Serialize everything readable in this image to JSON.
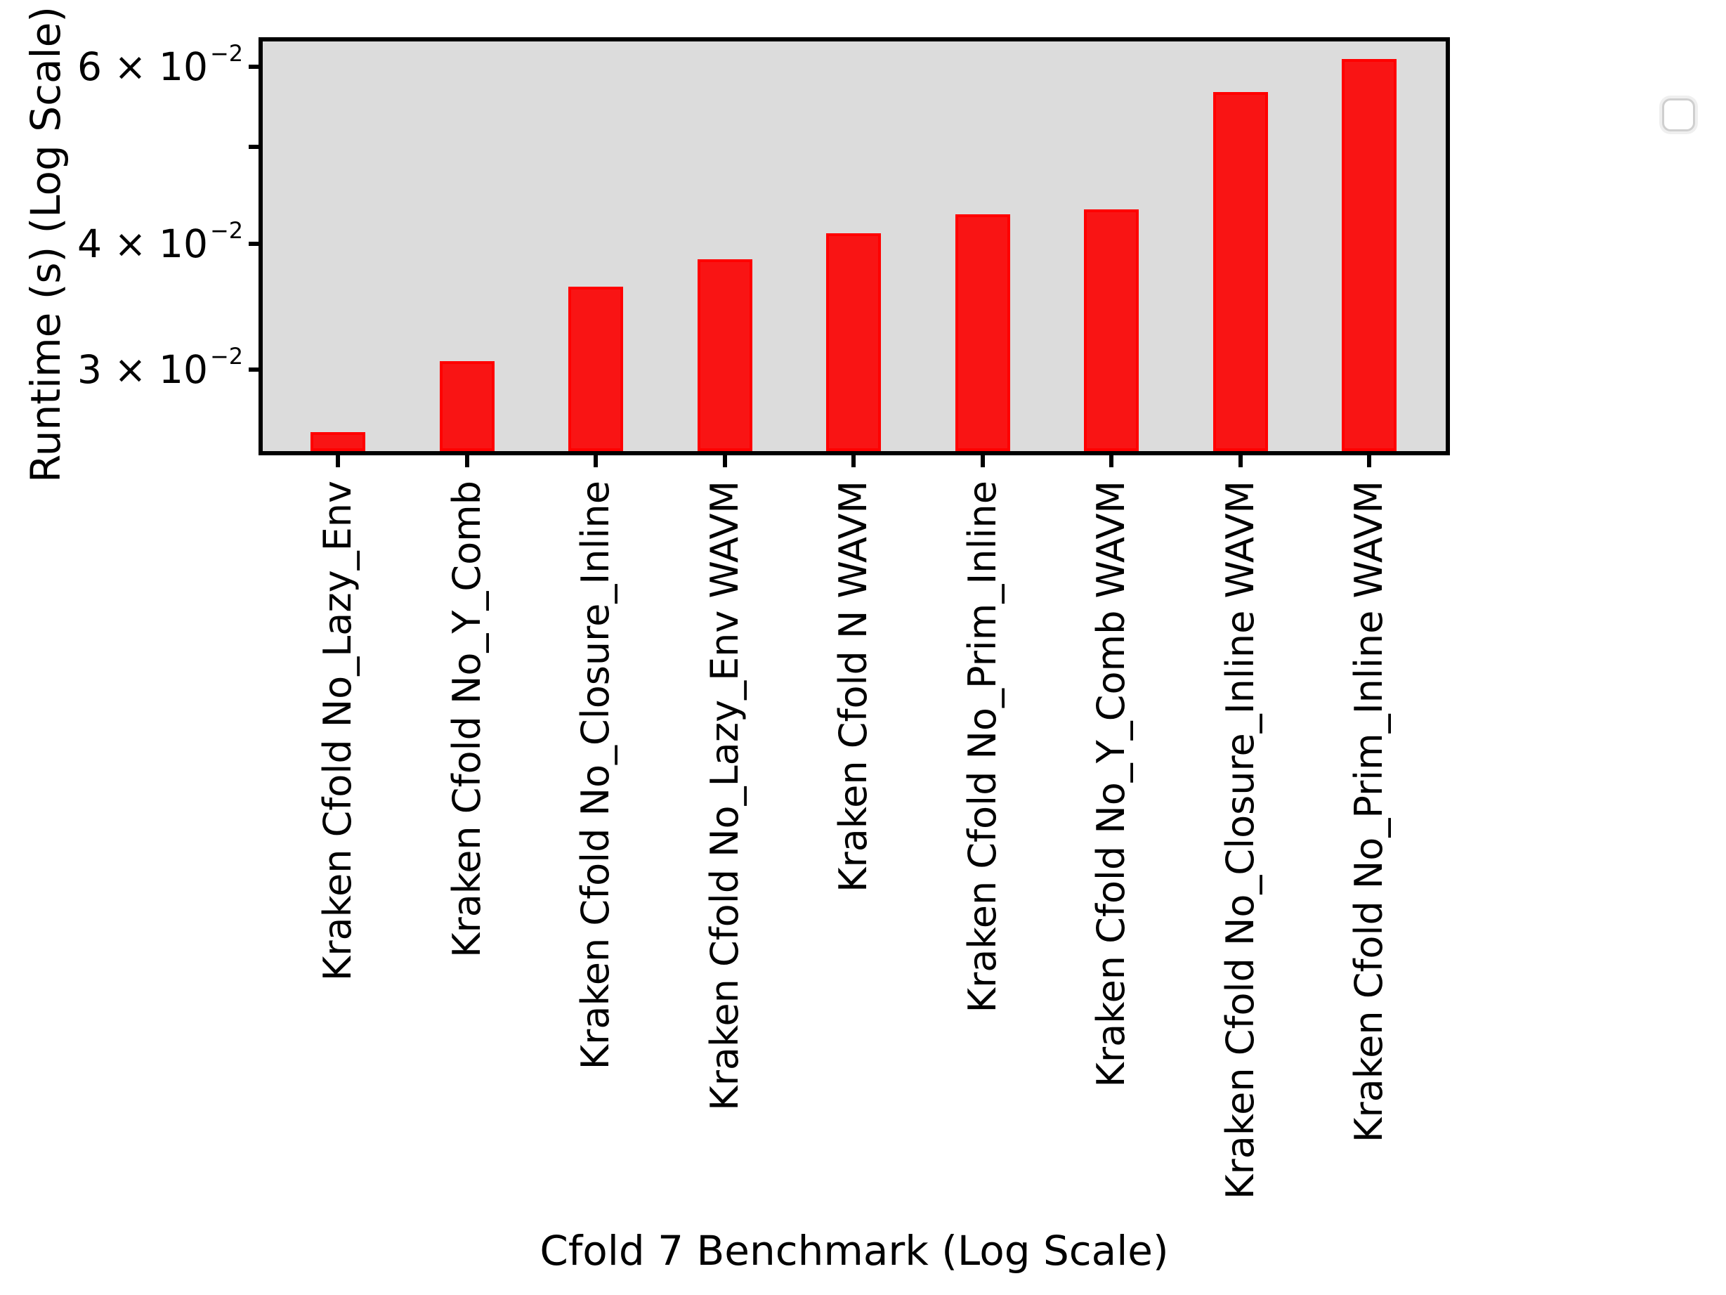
{
  "chart_data": {
    "type": "bar",
    "title": "",
    "xlabel": "Cfold 7 Benchmark (Log Scale)",
    "ylabel": "Runtime (s) (Log Scale)",
    "yscale": "log",
    "grid": false,
    "categories": [
      "Kraken Cfold No_Lazy_Env",
      "Kraken Cfold No_Y_Comb",
      "Kraken Cfold No_Closure_Inline",
      "Kraken Cfold No_Lazy_Env WAVM",
      "Kraken Cfold N WAVM",
      "Kraken Cfold No_Prim_Inline",
      "Kraken Cfold No_Y_Comb WAVM",
      "Kraken Cfold No_Closure_Inline WAVM",
      "Kraken Cfold No_Prim_Inline WAVM"
    ],
    "values": [
      0.026,
      0.0306,
      0.0363,
      0.0386,
      0.041,
      0.0428,
      0.0433,
      0.0566,
      0.0611
    ],
    "value_unit": "seconds",
    "ylim": [
      0.0249,
      0.0636
    ],
    "yticks": [
      {
        "value": 0.03,
        "label_main": "3 × 10",
        "label_exp": "−2"
      },
      {
        "value": 0.04,
        "label_main": "4 × 10",
        "label_exp": "−2"
      },
      {
        "value": 0.05,
        "label_main": "",
        "label_exp": ""
      },
      {
        "value": 0.06,
        "label_main": "6 × 10",
        "label_exp": "−2"
      }
    ],
    "colors": {
      "bar_fill": "#f91414",
      "bar_edge": "#ff0000",
      "plot_background": "#dcdcdc",
      "figure_background": "#ffffff",
      "axis": "#000000"
    },
    "legend": {
      "visible": true,
      "entries": [],
      "position": "upper-right"
    }
  }
}
